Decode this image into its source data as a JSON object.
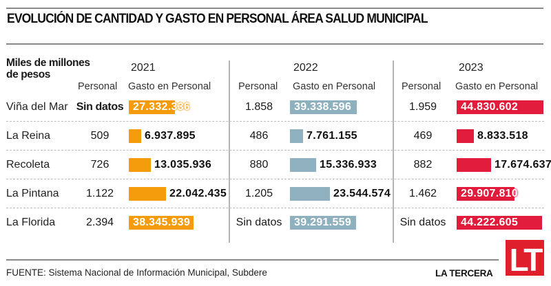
{
  "title": "EVOLUCIÓN DE CANTIDAD Y GASTO EN PERSONAL ÁREA SALUD MUNICIPAL",
  "units_label": "Miles de millones de pesos",
  "column_headers": {
    "personal": "Personal",
    "gasto": "Gasto en Personal"
  },
  "source": "FUENTE: Sistema Nacional de Información Municipal, Subdere",
  "brand": "LA TERCERA",
  "logo_text": "LT",
  "colors": {
    "2021": "#f59c0d",
    "2022": "#8fb1bf",
    "2023": "#e21c3c",
    "logo": "#e01f2d"
  },
  "chart_data": {
    "type": "table",
    "title": "EVOLUCIÓN DE CANTIDAD Y GASTO EN PERSONAL ÁREA SALUD MUNICIPAL",
    "subtitle": "Miles de millones de pesos",
    "years": [
      "2021",
      "2022",
      "2023"
    ],
    "municipalities": [
      "Viña del Mar",
      "La Reina",
      "Recoleta",
      "La Pintana",
      "La Florida"
    ],
    "series": [
      {
        "name": "2021",
        "personal": [
          "Sin datos",
          "509",
          "726",
          "1.122",
          "2.394"
        ],
        "gasto_label": [
          "27.332.336",
          "6.937.895",
          "13.035.936",
          "22.042.435",
          "38.345.939"
        ],
        "gasto": [
          27332336,
          6937895,
          13035936,
          22042435,
          38345939
        ]
      },
      {
        "name": "2022",
        "personal": [
          "1.858",
          "486",
          "880",
          "1.205",
          "Sin datos"
        ],
        "gasto_label": [
          "39.338.596",
          "7.761.155",
          "15.336.933",
          "23.544.574",
          "39.291.559"
        ],
        "gasto": [
          39338596,
          7761155,
          15336933,
          23544574,
          39291559
        ]
      },
      {
        "name": "2023",
        "personal": [
          "1.959",
          "469",
          "882",
          "1.462",
          "Sin datos"
        ],
        "gasto_label": [
          "44.830.602",
          "8.833.518",
          "17.674.637",
          "29.907.810",
          "44.222.605"
        ],
        "gasto": [
          44830602,
          8833518,
          17674637,
          29907810,
          44222605
        ]
      }
    ],
    "source": "FUENTE: Sistema Nacional de Información Municipal, Subdere"
  }
}
